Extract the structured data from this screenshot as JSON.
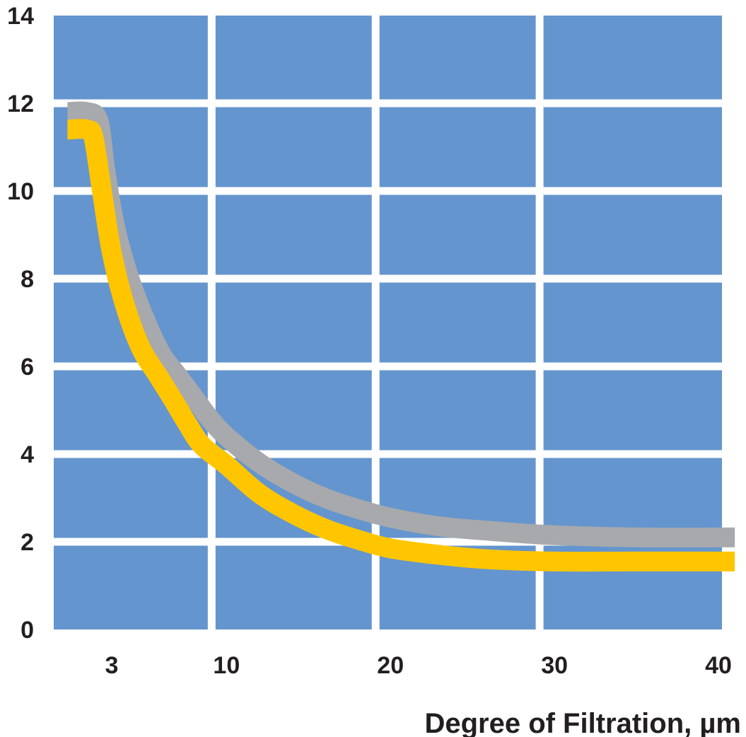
{
  "chart_data": {
    "type": "line",
    "title": "",
    "xlabel": "Degree of Filtration, µm",
    "ylabel": "",
    "xlim": [
      0,
      40
    ],
    "ylim": [
      0,
      14
    ],
    "x_ticks": [
      3,
      10,
      20,
      30,
      40
    ],
    "x_tick_labels": [
      "3",
      "10",
      "20",
      "30",
      "40"
    ],
    "y_ticks": [
      0,
      2,
      4,
      6,
      8,
      10,
      12,
      14
    ],
    "y_tick_labels": [
      "0",
      "2",
      "4",
      "6",
      "8",
      "10",
      "12",
      "14"
    ],
    "grid": true,
    "legend": false,
    "colors": {
      "plot_background": "#6495ce",
      "grid": "#ffffff",
      "text": "#231f20",
      "series": [
        "#a7a9ac",
        "#ffc600"
      ]
    },
    "series": [
      {
        "x": [
          0.3,
          1.5,
          2.2,
          2.6,
          3.2,
          4,
          5,
          6,
          7,
          8,
          9,
          10,
          12,
          14,
          16,
          18,
          20,
          23,
          26,
          30,
          35,
          41
        ],
        "y": [
          11.8,
          11.8,
          11.6,
          10.5,
          9.2,
          8.1,
          7.1,
          6.3,
          5.8,
          5.3,
          4.8,
          4.4,
          3.8,
          3.35,
          3.0,
          2.75,
          2.55,
          2.35,
          2.25,
          2.15,
          2.1,
          2.1
        ]
      },
      {
        "x": [
          0.3,
          1.5,
          1.9,
          2.4,
          3.0,
          3.8,
          4.8,
          5.8,
          6.8,
          7.6,
          8.5,
          10,
          12,
          14,
          16,
          18,
          20,
          23,
          26,
          30,
          35,
          41
        ],
        "y": [
          11.4,
          11.4,
          11.2,
          10.0,
          8.6,
          7.4,
          6.4,
          5.8,
          5.2,
          4.7,
          4.2,
          3.75,
          3.1,
          2.65,
          2.3,
          2.05,
          1.85,
          1.7,
          1.6,
          1.55,
          1.55,
          1.55
        ]
      }
    ]
  }
}
